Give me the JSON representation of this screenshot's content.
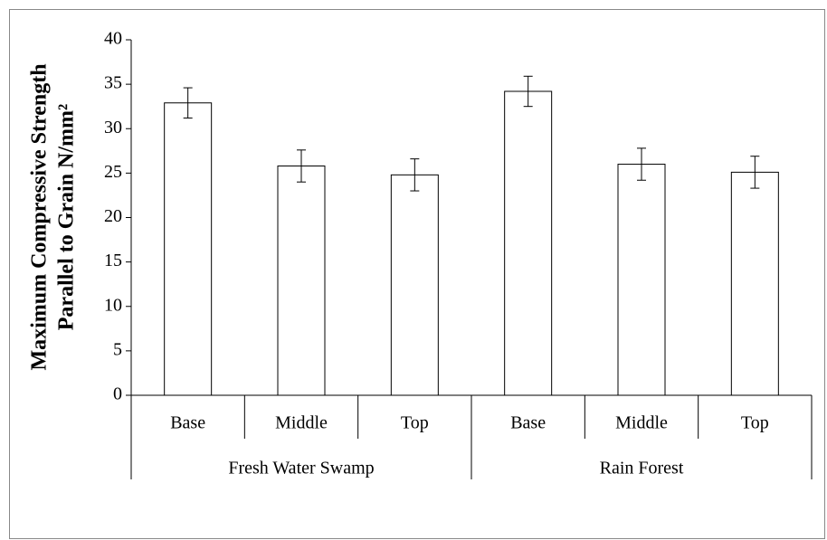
{
  "chart_data": {
    "type": "bar",
    "ylabel": [
      "Maximum Compressive  Strength",
      "Parallel to Grain N/mm²"
    ],
    "categories": [
      "Base",
      "Middle",
      "Top",
      "Base",
      "Middle",
      "Top"
    ],
    "groups": [
      "Fresh Water Swamp",
      "Rain Forest"
    ],
    "series": [
      {
        "color": "#ffffff",
        "values": [
          32.9,
          25.8,
          24.8,
          34.2,
          26.0,
          25.1
        ],
        "errors": [
          1.7,
          1.8,
          1.8,
          1.7,
          1.8,
          1.8
        ]
      }
    ],
    "ylim": [
      0,
      40
    ],
    "yticks": [
      0,
      5,
      10,
      15,
      20,
      25,
      30,
      35,
      40
    ],
    "grid": false
  }
}
